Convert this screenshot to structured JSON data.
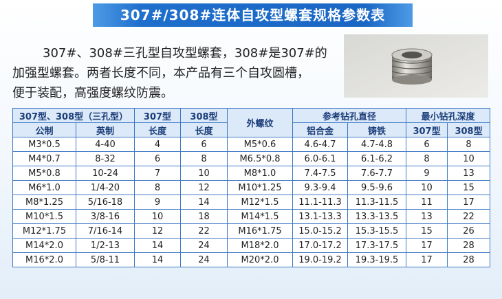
{
  "title": "307#/308#连体自攻型螺套规格参数表",
  "intro": [
    "307#、308#三孔型自攻型螺套，308#是307#的",
    "加强型螺套。两者长度不同，本产品有三个自攻圆槽，",
    "便于装配，高强度螺纹防震。"
  ],
  "table": {
    "header_row1": [
      "307型、308型（三孔型）",
      "307型",
      "308型",
      "外螺纹",
      "参考钻孔直径",
      "最小钻孔深度"
    ],
    "header_row2": [
      "公制",
      "英制",
      "长度",
      "长度",
      "铝合金",
      "铸铁",
      "307型",
      "308型"
    ],
    "rows": [
      [
        "M3*0.5",
        "4-40",
        4,
        6,
        "M5*0.6",
        "4.6-4.7",
        "4.7-4.8",
        6,
        8
      ],
      [
        "M4*0.7",
        "8-32",
        6,
        8,
        "M6.5*0.8",
        "6.0-6.1",
        "6.1-6.2",
        8,
        10
      ],
      [
        "M5*0.8",
        "10-24",
        7,
        10,
        "M8*1.0",
        "7.4-7.5",
        "7.6-7.7",
        9,
        13
      ],
      [
        "M6*1.0",
        "1/4-20",
        8,
        12,
        "M10*1.25",
        "9.3-9.4",
        "9.5-9.6",
        10,
        15
      ],
      [
        "M8*1.25",
        "5/16-18",
        9,
        14,
        "M12*1.5",
        "11.1-11.3",
        "11.3-11.5",
        11,
        17
      ],
      [
        "M10*1.5",
        "3/8-16",
        10,
        18,
        "M14*1.5",
        "13.1-13.3",
        "13.3-13.5",
        13,
        22
      ],
      [
        "M12*1.75",
        "7/16-14",
        12,
        22,
        "M16*1.75",
        "15.0-15.2",
        "15.3-15.5",
        15,
        26
      ],
      [
        "M14*2.0",
        "1/2-13",
        14,
        24,
        "M18*2.0",
        "17.0-17.2",
        "17.3-17.5",
        17,
        28
      ],
      [
        "M16*2.0",
        "5/8-11",
        14,
        24,
        "M20*2.0",
        "19.0-19.2",
        "19.3-19.5",
        17,
        28
      ]
    ]
  }
}
